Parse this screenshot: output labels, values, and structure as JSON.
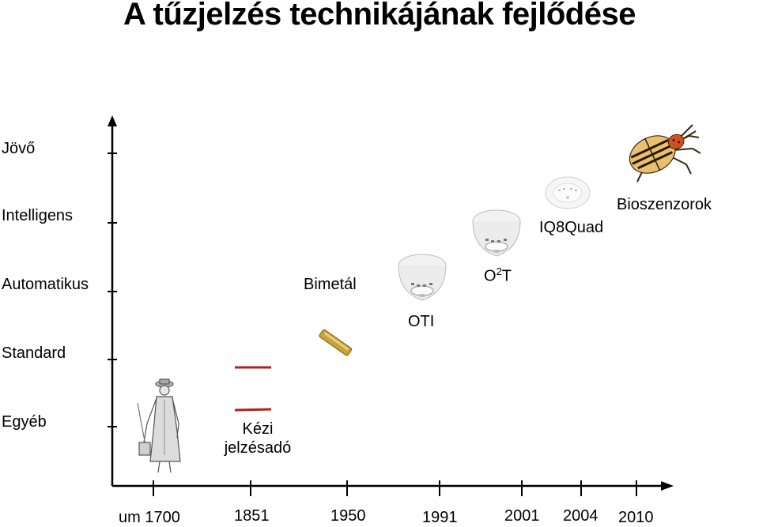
{
  "title": "A tűzjelzés technikájának fejlődése",
  "levels": [
    "Jövő",
    "Intelligens",
    "Automatikus",
    "Standard",
    "Egyéb"
  ],
  "years": [
    "um 1700",
    "1851",
    "1950",
    "1991",
    "2001",
    "2004",
    "2010"
  ],
  "items": {
    "manual_call_point": "Kézi jelzésadó",
    "bimetal": "Bimetál",
    "oti": "OTI",
    "o2t_main": "O",
    "o2t_sup": "2",
    "o2t_end": "T",
    "iq8quad": "IQ8Quad",
    "biosensors": "Bioszenzorok"
  },
  "colors": {
    "axis": "#000000",
    "call_point_line": "#b02020",
    "beetle_stripe": "#e8c070",
    "beetle_head": "#d2501e"
  },
  "icons": [
    "watchman-figure",
    "call-point-line",
    "bimetal-sensor",
    "smoke-detector",
    "colorado-beetle"
  ]
}
